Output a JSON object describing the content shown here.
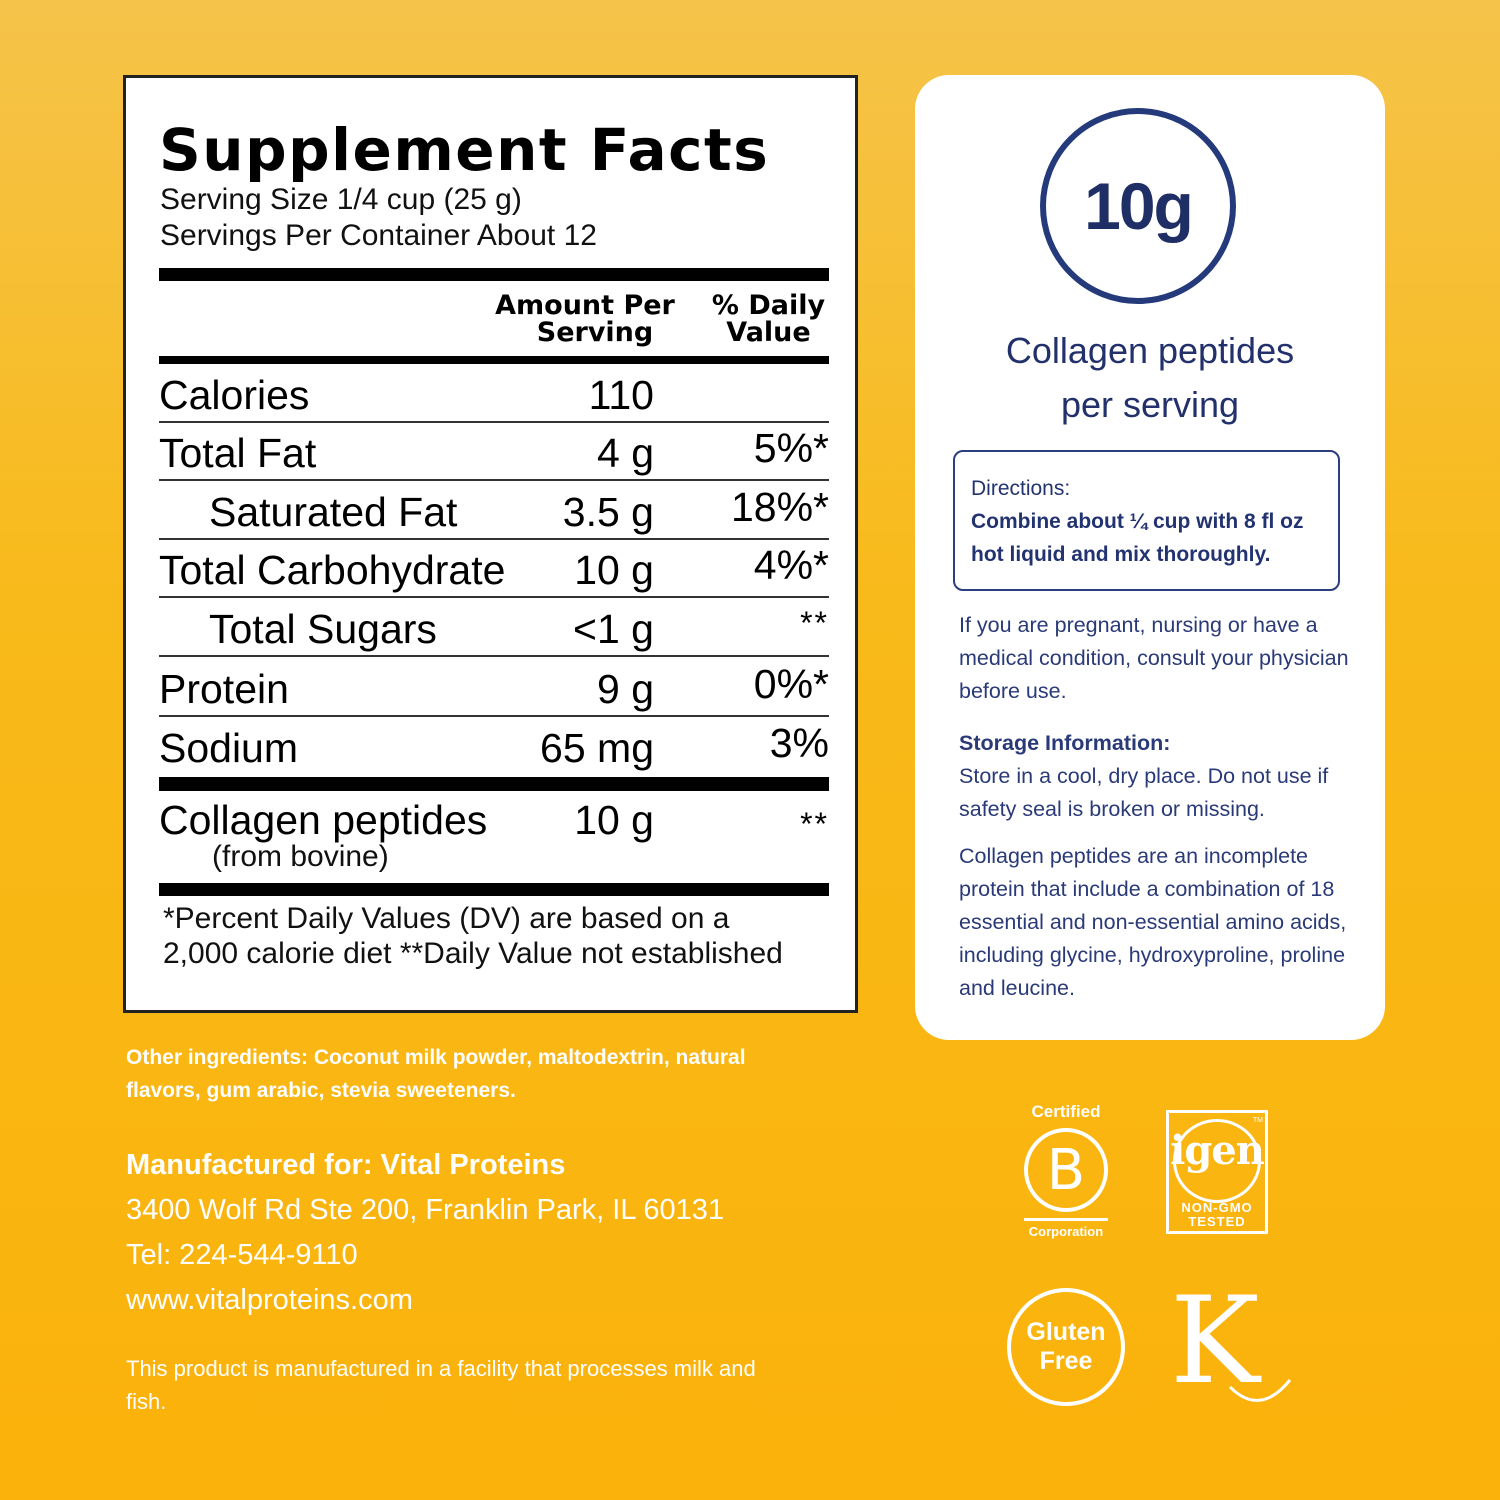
{
  "facts": {
    "title": "Supplement Facts",
    "serving_size": "Serving Size 1/4 cup (25 g)",
    "servings_per_container": "Servings Per Container About 12",
    "col_amount_line1": "Amount Per",
    "col_amount_line2": "Serving",
    "col_dv_line1": "% Daily",
    "col_dv_line2": "Value",
    "rows": [
      {
        "name": "Calories",
        "amount": "110",
        "dv": ""
      },
      {
        "name": "Total Fat",
        "amount": "4 g",
        "dv": "5%*"
      },
      {
        "name": "Saturated Fat",
        "amount": "3.5 g",
        "dv": "18%*"
      },
      {
        "name": "Total Carbohydrate",
        "amount": "10 g",
        "dv": "4%*"
      },
      {
        "name": "Total Sugars",
        "amount": "<1 g",
        "dv": "**"
      },
      {
        "name": "Protein",
        "amount": "9 g",
        "dv": "0%*"
      },
      {
        "name": "Sodium",
        "amount": "65 mg",
        "dv": "3%"
      }
    ],
    "collagen_name": "Collagen peptides",
    "collagen_source": "(from bovine)",
    "collagen_amount": "10 g",
    "collagen_dv": "**",
    "footnote_line1": "*Percent Daily Values (DV) are based on a",
    "footnote_line2": "2,000 calorie diet **Daily Value not established"
  },
  "card": {
    "badge_value": "10g",
    "badge_caption_line1": "Collagen peptides",
    "badge_caption_line2": "per serving",
    "directions_title": "Directions:",
    "directions_text": "Combine about ¼ cup with 8 fl oz hot liquid and mix thoroughly.",
    "warning": "If you are pregnant, nursing or have a medical condition, consult your physician before use.",
    "storage_title": "Storage Information:",
    "storage_text": "Store in a cool, dry place. Do not use if safety seal is broken or missing.",
    "collagen_info": "Collagen peptides are an incomplete protein that include a combination of 18 essential and non-essential amino acids, including glycine, hydroxyproline, proline and leucine."
  },
  "bottom": {
    "ingredients": "Other ingredients: Coconut milk powder, maltodextrin, natural flavors, gum arabic, stevia sweeteners.",
    "manufactured_for": "Manufactured for: Vital Proteins",
    "address": "3400 Wolf Rd Ste 200, Franklin Park, IL 60131",
    "tel": "Tel: 224-544-9110",
    "website": "www.vitalproteins.com",
    "allergen_note": "This product is manufactured in a facility that processes milk and fish."
  },
  "badges": {
    "bcorp_top": "Certified",
    "bcorp_letter": "B",
    "bcorp_bottom": "Corporation",
    "igen_logo": "igen",
    "igen_tm": "TM",
    "igen_line1": "NON-GMO",
    "igen_line2": "TESTED",
    "gluten_line1": "Gluten",
    "gluten_line2": "Free",
    "kosher_logo": "K"
  },
  "colors": {
    "background_top": "#f5c34a",
    "background_bottom": "#fbb20a",
    "navy": "#22306b"
  }
}
